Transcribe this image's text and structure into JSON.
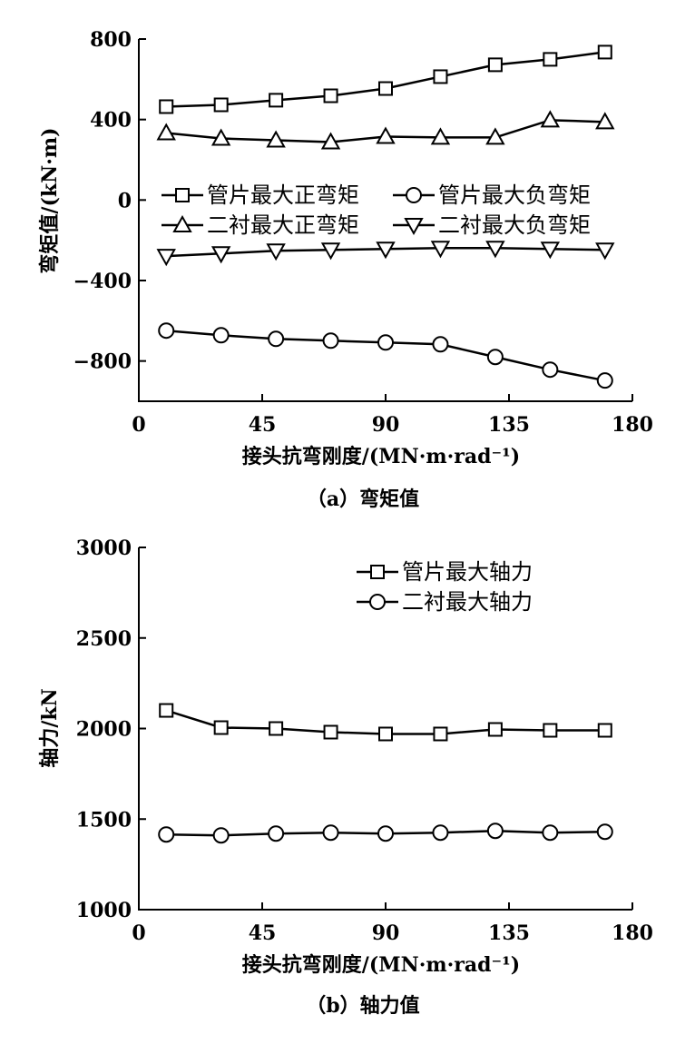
{
  "chart_data": [
    {
      "type": "line",
      "caption": "（a）弯矩值",
      "xlabel": "接头抗弯刚度/(MN·m·rad⁻¹)",
      "ylabel": "弯矩值/(kN·m)",
      "xlim": [
        0,
        180
      ],
      "ylim": [
        -1000,
        800
      ],
      "xticks": [
        0,
        45,
        90,
        135,
        180
      ],
      "yticks": [
        800,
        400,
        0,
        -400,
        -800
      ],
      "ytick_labels": [
        "800",
        "400",
        "0",
        "−400",
        "−800"
      ],
      "grid": false,
      "legend_position": "center",
      "x": [
        10,
        30,
        50,
        70,
        90,
        110,
        130,
        150,
        170
      ],
      "series": [
        {
          "name": "管片最大正弯矩",
          "marker": "square",
          "values": [
            464,
            473,
            496,
            518,
            554,
            613,
            672,
            699,
            735
          ]
        },
        {
          "name": "管片最大负弯矩",
          "marker": "circle",
          "values": [
            -649,
            -672,
            -690,
            -699,
            -708,
            -717,
            -780,
            -843,
            -897
          ]
        },
        {
          "name": "二衬最大正弯矩",
          "marker": "triangle-up",
          "values": [
            333,
            306,
            297,
            288,
            315,
            311,
            311,
            397,
            388
          ]
        },
        {
          "name": "二衬最大负弯矩",
          "marker": "triangle-down",
          "values": [
            -279,
            -266,
            -252,
            -248,
            -243,
            -239,
            -239,
            -243,
            -248
          ]
        }
      ]
    },
    {
      "type": "line",
      "caption": "（b）轴力值",
      "xlabel": "接头抗弯刚度/(MN·m·rad⁻¹)",
      "ylabel": "轴力/kN",
      "xlim": [
        0,
        180
      ],
      "ylim": [
        1000,
        3000
      ],
      "xticks": [
        0,
        45,
        90,
        135,
        180
      ],
      "yticks": [
        3000,
        2500,
        2000,
        1500,
        1000
      ],
      "ytick_labels": [
        "3000",
        "2500",
        "2000",
        "1500",
        "1000"
      ],
      "grid": false,
      "legend_position": "top-right",
      "x": [
        10,
        30,
        50,
        70,
        90,
        110,
        130,
        150,
        170
      ],
      "series": [
        {
          "name": "管片最大轴力",
          "marker": "square",
          "values": [
            2100,
            2005,
            2000,
            1980,
            1970,
            1970,
            1995,
            1990,
            1990
          ]
        },
        {
          "name": "二衬最大轴力",
          "marker": "circle",
          "values": [
            1415,
            1410,
            1420,
            1425,
            1420,
            1425,
            1435,
            1425,
            1430
          ]
        }
      ]
    }
  ]
}
